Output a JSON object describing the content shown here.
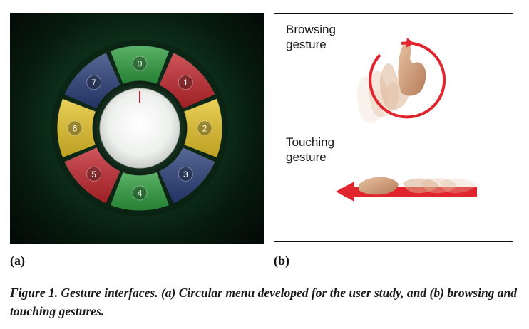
{
  "figure": {
    "caption": "Figure 1. Gesture interfaces. (a) Circular menu developed for the user study, and (b) browsing and touching gestures."
  },
  "panel_a": {
    "label": "(a)",
    "menu_segments": [
      {
        "number": "0",
        "color": "#2f9e3f"
      },
      {
        "number": "1",
        "color": "#c1272d"
      },
      {
        "number": "2",
        "color": "#e6c42a"
      },
      {
        "number": "3",
        "color": "#2a3f7a"
      },
      {
        "number": "4",
        "color": "#2f9e3f"
      },
      {
        "number": "5",
        "color": "#c1272d"
      },
      {
        "number": "6",
        "color": "#e6c42a"
      },
      {
        "number": "7",
        "color": "#2a3f7a"
      }
    ],
    "center_dial_icon": "dial-pointer-icon"
  },
  "panel_b": {
    "label": "(b)",
    "browsing_label": "Browsing\ngesture",
    "touching_label": "Touching\ngesture",
    "arrow_color": "#e0252f",
    "icons": [
      "hand-icon",
      "circular-arrow-icon",
      "left-arrow-icon"
    ]
  }
}
